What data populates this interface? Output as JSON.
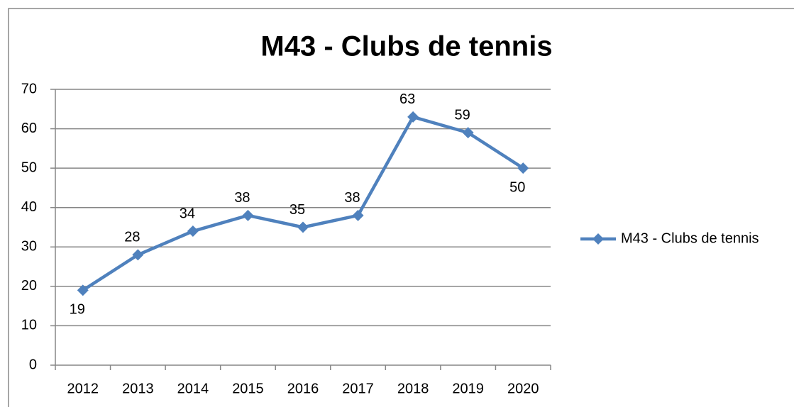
{
  "chart_data": {
    "type": "line",
    "title": "M43 - Clubs de tennis",
    "categories": [
      "2012",
      "2013",
      "2014",
      "2015",
      "2016",
      "2017",
      "2018",
      "2019",
      "2020"
    ],
    "series": [
      {
        "name": "M43 - Clubs de tennis",
        "color": "#4f81bd",
        "values": [
          19,
          28,
          34,
          38,
          35,
          38,
          63,
          59,
          50
        ]
      }
    ],
    "ylim": [
      0,
      70
    ],
    "yticks": [
      0,
      10,
      20,
      30,
      40,
      50,
      60,
      70
    ],
    "grid": true,
    "legend": "right"
  }
}
